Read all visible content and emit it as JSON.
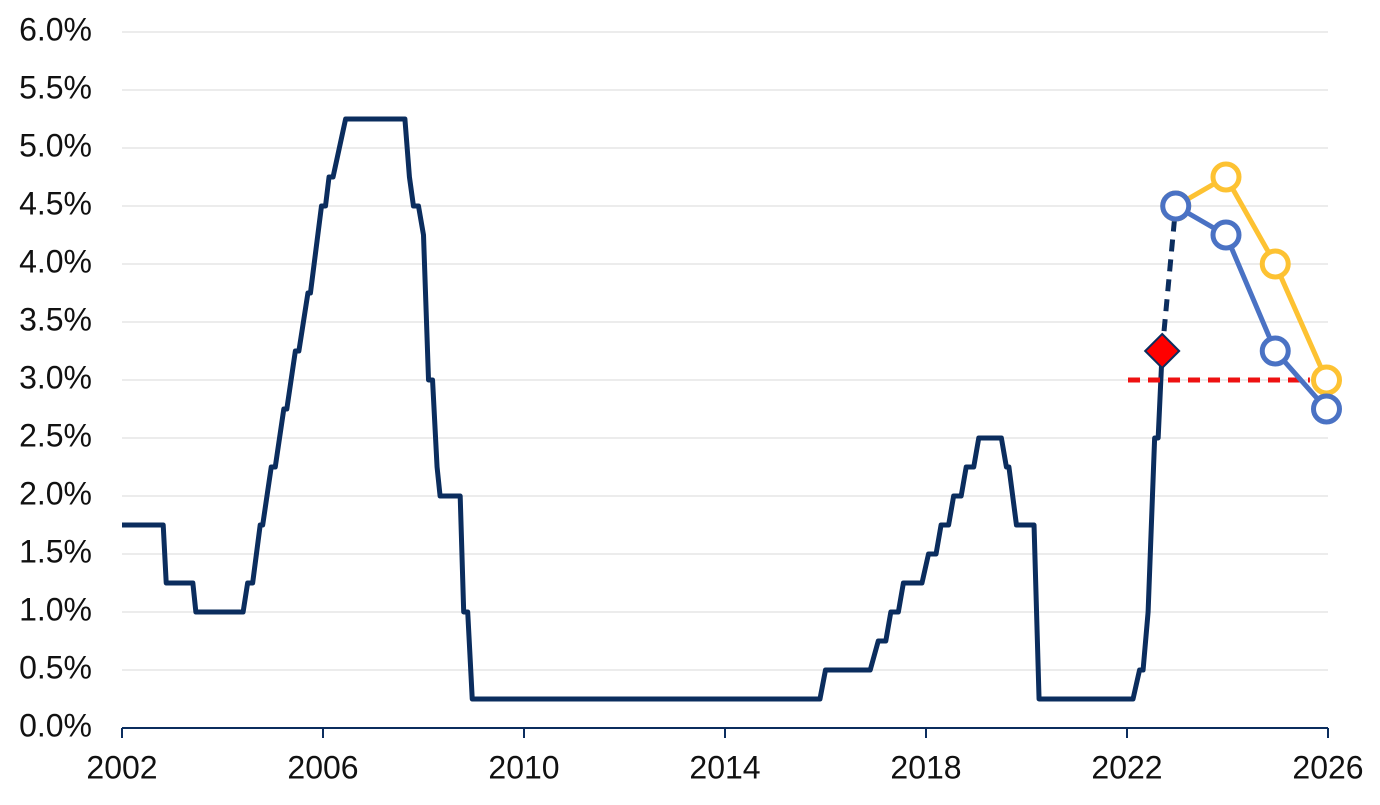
{
  "chart_data": {
    "type": "line",
    "xlim": [
      2002,
      2026
    ],
    "ylim": [
      0,
      6
    ],
    "xticks": [
      2002,
      2006,
      2010,
      2014,
      2018,
      2022,
      2026
    ],
    "yticks": [
      {
        "value": 0,
        "label": "0.0%"
      },
      {
        "value": 0.5,
        "label": "0.5%"
      },
      {
        "value": 1,
        "label": "1.0%"
      },
      {
        "value": 1.5,
        "label": "1.5%"
      },
      {
        "value": 2,
        "label": "2.0%"
      },
      {
        "value": 2.5,
        "label": "2.5%"
      },
      {
        "value": 3,
        "label": "3.0%"
      },
      {
        "value": 3.5,
        "label": "3.5%"
      },
      {
        "value": 4,
        "label": "4.0%"
      },
      {
        "value": 4.5,
        "label": "4.5%"
      },
      {
        "value": 5,
        "label": "5.0%"
      },
      {
        "value": 5.5,
        "label": "5.5%"
      },
      {
        "value": 6,
        "label": "6.0%"
      }
    ],
    "grid": true,
    "series": [
      {
        "color": "#0b2d5e",
        "style": "solid",
        "x": [
          2002.0,
          2002.82,
          2002.88,
          2003.41,
          2003.47,
          2004.41,
          2004.5,
          2004.6,
          2004.75,
          2004.8,
          2004.97,
          2005.05,
          2005.22,
          2005.28,
          2005.45,
          2005.52,
          2005.7,
          2005.75,
          2005.97,
          2006.05,
          2006.12,
          2006.2,
          2006.45,
          2007.63,
          2007.72,
          2007.8,
          2007.9,
          2008.0,
          2008.1,
          2008.18,
          2008.27,
          2008.33,
          2008.73,
          2008.8,
          2008.88,
          2008.97,
          2015.89,
          2016.0,
          2016.89,
          2017.05,
          2017.2,
          2017.3,
          2017.45,
          2017.55,
          2017.92,
          2018.05,
          2018.2,
          2018.3,
          2018.45,
          2018.55,
          2018.7,
          2018.8,
          2018.95,
          2019.05,
          2019.5,
          2019.6,
          2019.65,
          2019.8,
          2020.15,
          2020.25,
          2022.12,
          2022.25,
          2022.32,
          2022.42,
          2022.55,
          2022.62,
          2022.7
        ],
        "values": [
          1.75,
          1.75,
          1.25,
          1.25,
          1.0,
          1.0,
          1.25,
          1.25,
          1.75,
          1.75,
          2.25,
          2.25,
          2.75,
          2.75,
          3.25,
          3.25,
          3.75,
          3.75,
          4.5,
          4.5,
          4.75,
          4.75,
          5.25,
          5.25,
          4.75,
          4.5,
          4.5,
          4.25,
          3.0,
          3.0,
          2.25,
          2.0,
          2.0,
          1.0,
          1.0,
          0.25,
          0.25,
          0.5,
          0.5,
          0.75,
          0.75,
          1.0,
          1.0,
          1.25,
          1.25,
          1.5,
          1.5,
          1.75,
          1.75,
          2.0,
          2.0,
          2.25,
          2.25,
          2.5,
          2.5,
          2.25,
          2.25,
          1.75,
          1.75,
          0.25,
          0.25,
          0.5,
          0.5,
          1.0,
          2.5,
          2.5,
          3.25
        ]
      },
      {
        "color": "#0b2d5e",
        "style": "dashed",
        "x": [
          2022.7,
          2022.97
        ],
        "values": [
          3.25,
          4.5
        ]
      },
      {
        "color": "#ee1111",
        "style": "dashed",
        "x": [
          2022.02,
          2025.64
        ],
        "values": [
          3.0,
          3.0
        ]
      },
      {
        "color": "#fdc232",
        "style": "solid",
        "marker": "circle",
        "x": [
          2022.97,
          2023.97,
          2024.95,
          2025.97
        ],
        "values": [
          4.5,
          4.75,
          4.0,
          3.0
        ]
      },
      {
        "color": "#4a72c4",
        "style": "solid",
        "marker": "circle",
        "x": [
          2022.97,
          2023.97,
          2024.95,
          2025.97
        ],
        "values": [
          4.5,
          4.25,
          3.25,
          2.75
        ]
      },
      {
        "color": "#ff0000",
        "style": "none",
        "marker": "diamond",
        "x": [
          2022.7
        ],
        "values": [
          3.25
        ]
      }
    ]
  }
}
